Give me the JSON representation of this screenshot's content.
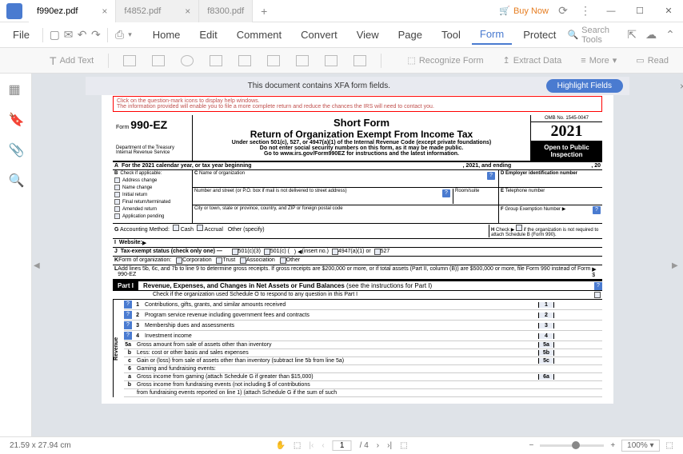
{
  "titlebar": {
    "tabs": [
      {
        "label": "f990ez.pdf",
        "active": true
      },
      {
        "label": "f4852.pdf",
        "active": false
      },
      {
        "label": "f8300.pdf",
        "active": false
      }
    ],
    "buy_now": "Buy Now"
  },
  "menubar": {
    "file": "File",
    "items": [
      "Home",
      "Edit",
      "Comment",
      "Convert",
      "View",
      "Page",
      "Tool",
      "Form",
      "Protect"
    ],
    "active_index": 7,
    "search": "Search Tools"
  },
  "toolbar": {
    "add_text": "Add Text",
    "recognize": "Recognize Form",
    "extract": "Extract Data",
    "more": "More",
    "read": "Read"
  },
  "xfa": {
    "text": "This document contains XFA form fields.",
    "button": "Highlight Fields"
  },
  "doc": {
    "warn_l1": "Click on the question-mark icons to display help windows.",
    "warn_l2": "The information provided will enable you to file a more complete return and reduce the chances the IRS will need to contact you.",
    "form_prefix": "Form",
    "form_number": "990-EZ",
    "dept": "Department of the Treasury  Internal Revenue Service",
    "title": "Short Form",
    "subtitle": "Return of Organization Exempt From Income Tax",
    "under1": "Under section 501(c), 527, or 4947(a)(1) of the Internal Revenue Code (except private foundations)",
    "under2": "Do not enter social security numbers on this form, as it may be made public.",
    "under3": "Go to www.irs.gov/Form990EZ for instructions and the latest information.",
    "omb": "OMB No. 1545-0047",
    "year": "2021",
    "inspect1": "Open to Public",
    "inspect2": "Inspection",
    "line_a": "For the 2021 calendar year, or tax year beginning",
    "line_a_mid": ", 2021, and ending",
    "line_a_end": ", 20",
    "b_label": "Check if applicable:",
    "b_items": [
      "Address change",
      "Name change",
      "Initial return",
      "Final return/terminated",
      "Amended return",
      "Application pending"
    ],
    "c_name": "Name of organization",
    "c_addr": "Number and street (or P.O. box if mail is not delivered to street address)",
    "c_room": "Room/suite",
    "c_city": "City or town, state or province, country, and ZIP or foreign postal code",
    "d_ein": "Employer identification number",
    "e_tel": "Telephone number",
    "f_group": "Group Exemption Number",
    "g_label": "Accounting Method:",
    "g_cash": "Cash",
    "g_accrual": "Accrual",
    "g_other": "Other (specify)",
    "h_check": "Check",
    "h_text": "if the organization is not  required to attach Schedule B (Form 990).",
    "i_label": "Website:",
    "j_label": "Tax-exempt status (check only one) —",
    "j_501c3": "501(c)(3)",
    "j_501c": "501(c) (",
    "j_insert": "(insert no.)",
    "j_4947": "4947(a)(1) or",
    "j_527": "527",
    "k_label": "Form of organization:",
    "k_corp": "Corporation",
    "k_trust": "Trust",
    "k_assoc": "Association",
    "k_other": "Other",
    "l_text": "Add lines 5b, 6c, and 7b to line 9 to determine gross receipts. If gross receipts are $200,000 or more, or if total assets (Part II, column (B)) are $500,000 or more, file Form 990 instead of Form 990-EZ",
    "part1": "Part I",
    "part1_title": "Revenue, Expenses, and Changes in Net Assets or Fund Balances",
    "part1_see": "(see the instructions for Part I)",
    "part1_check": "Check if the organization used Schedule O to respond to any question in this Part I",
    "lines": [
      {
        "n": "1",
        "t": "Contributions, gifts, grants, and similar amounts received",
        "rn": "1"
      },
      {
        "n": "2",
        "t": "Program service revenue including government fees and contracts",
        "rn": "2"
      },
      {
        "n": "3",
        "t": "Membership dues and assessments",
        "rn": "3"
      },
      {
        "n": "4",
        "t": "Investment income",
        "rn": "4"
      },
      {
        "n": "5a",
        "t": "Gross amount from sale of assets other than inventory",
        "rn": "5a"
      },
      {
        "n": "b",
        "t": "Less: cost or other basis and sales expenses",
        "rn": "5b"
      },
      {
        "n": "c",
        "t": "Gain or (loss) from sale of assets other than inventory (subtract line 5b from line 5a)",
        "rn": "5c"
      },
      {
        "n": "6",
        "t": "Gaming and fundraising events:"
      },
      {
        "n": "a",
        "t": "Gross income from gaming (attach Schedule G if greater than  $15,000)",
        "rn": "6a"
      },
      {
        "n": "b",
        "t": "Gross income from fundraising events (not including            $                             of contributions"
      },
      {
        "n": "",
        "t": "from fundraising events reported on line 1) (attach Schedule G if the sum of such"
      }
    ],
    "revenue_label": "Revenue"
  },
  "statusbar": {
    "dims": "21.59 x 27.94 cm",
    "page_cur": "1",
    "page_total": "/ 4",
    "zoom": "100%"
  }
}
